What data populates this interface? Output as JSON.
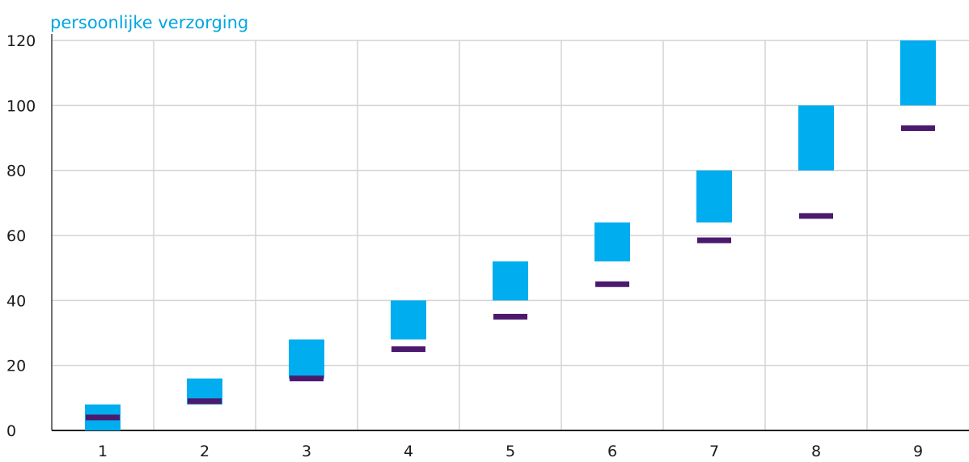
{
  "chart_data": {
    "type": "bar",
    "title": "persoonlijke verzorging",
    "xlabel": "",
    "ylabel": "",
    "categories": [
      "1",
      "2",
      "3",
      "4",
      "5",
      "6",
      "7",
      "8",
      "9"
    ],
    "ylim": [
      0,
      120
    ],
    "yticks": [
      "0",
      "20",
      "40",
      "60",
      "80",
      "100",
      "120"
    ],
    "grid": true,
    "series": [
      {
        "kind": "floating-range",
        "low": [
          0,
          8,
          16,
          28,
          40,
          52,
          64,
          80,
          100
        ],
        "high": [
          8,
          16,
          28,
          40,
          52,
          64,
          80,
          100,
          120
        ],
        "color": "#00adef"
      },
      {
        "kind": "marker",
        "values": [
          4,
          9,
          16,
          25,
          35,
          45,
          58.5,
          66,
          93
        ],
        "color": "#4b1a6e"
      }
    ]
  }
}
